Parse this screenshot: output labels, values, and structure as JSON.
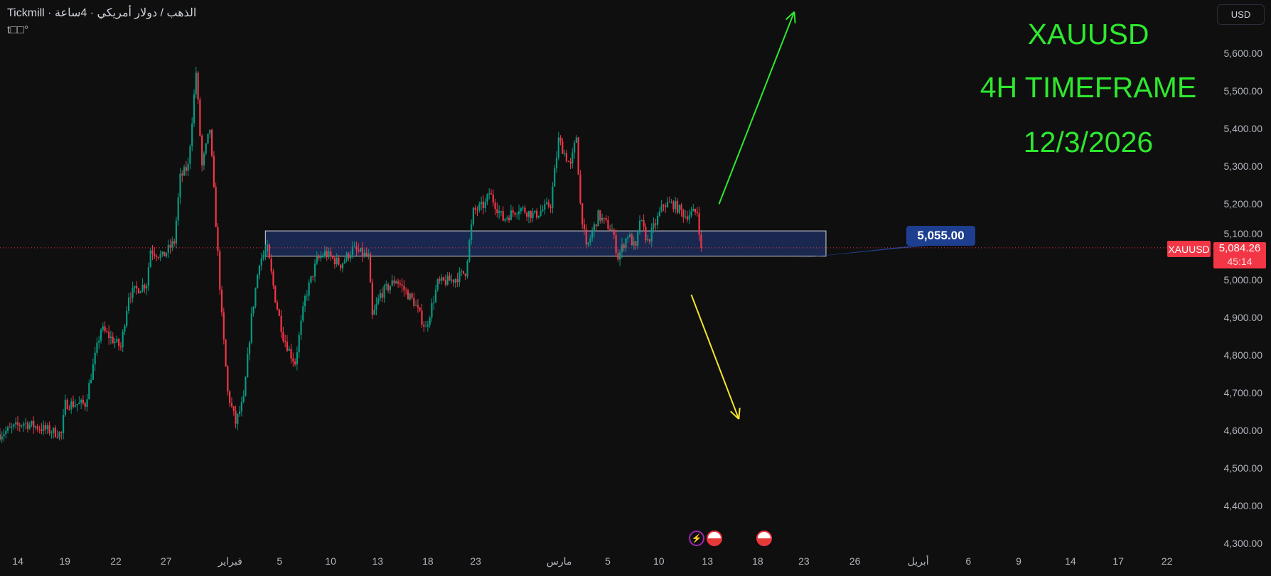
{
  "header": {
    "title": "Tickmill · الذهب / دولار أمريكي · 4ساعة",
    "subtitle": "t□□°"
  },
  "annotations": {
    "symbol": "XAUUSD",
    "timeframe": "4H TIMEFRAME",
    "date": "12/3/2026",
    "color": "#2ee82e"
  },
  "toolbar": {
    "currency_label": "USD"
  },
  "current_price": {
    "symbol": "XAUUSD",
    "price": "5,084.26",
    "countdown": "45:14",
    "color": "#f23645"
  },
  "zone": {
    "label": "5,055.00",
    "top": 5129,
    "bottom": 5062,
    "start": "2026-02-03 20:00",
    "end": "2026-03-23 00:00"
  },
  "arrows": [
    {
      "color": "#2ee82e",
      "direction": "up",
      "from": [
        "2026-03-14 00:00",
        5200
      ],
      "to": [
        "2026-03-20 08:00",
        5710
      ]
    },
    {
      "color": "#f5e52a",
      "direction": "down",
      "from": [
        "2026-03-11 16:00",
        4960
      ],
      "to": [
        "2026-03-15 16:00",
        4630
      ]
    }
  ],
  "events": [
    {
      "icon": "lightning-icon",
      "color": "#9c27b0"
    },
    {
      "icon": "us-flag-icon",
      "color": "#f23645"
    },
    {
      "icon": "us-flag-icon",
      "color": "#f23645"
    }
  ],
  "chart_data": {
    "type": "candlestick",
    "symbol": "XAUUSD",
    "timeframe": "4H",
    "up_color": "#089981",
    "down_color": "#f23645",
    "ylim": [
      4270,
      5680
    ],
    "y_ticks": [
      "5,600.00",
      "5,500.00",
      "5,400.00",
      "5,300.00",
      "5,200.00",
      "5,100.00",
      "5,000.00",
      "4,900.00",
      "4,800.00",
      "4,700.00",
      "4,600.00",
      "4,500.00",
      "4,400.00",
      "4,300.00"
    ],
    "x_ticks": [
      "14",
      "19",
      "22",
      "27",
      "فبراير",
      "5",
      "10",
      "13",
      "18",
      "23",
      "مارس",
      "5",
      "10",
      "13",
      "18",
      "23",
      "26",
      "أبريل",
      "6",
      "9",
      "14",
      "17",
      "22"
    ],
    "close_path": [
      [
        "2026-01-12 12:00",
        4590
      ],
      [
        "2026-01-14 12:00",
        4620
      ],
      [
        "2026-01-17 16:00",
        4590
      ],
      [
        "2026-01-18 00:00",
        4670
      ],
      [
        "2026-01-19 16:00",
        4670
      ],
      [
        "2026-01-21 00:00",
        4870
      ],
      [
        "2026-01-22 16:00",
        4820
      ],
      [
        "2026-01-23 08:00",
        4960
      ],
      [
        "2026-01-24 20:00",
        4990
      ],
      [
        "2026-01-25 04:00",
        5080
      ],
      [
        "2026-01-26 04:00",
        5060
      ],
      [
        "2026-01-27 04:00",
        5100
      ],
      [
        "2026-01-27 16:00",
        5270
      ],
      [
        "2026-01-28 08:00",
        5300
      ],
      [
        "2026-01-29 00:00",
        5550
      ],
      [
        "2026-01-29 12:00",
        5300
      ],
      [
        "2026-01-30 04:00",
        5400
      ],
      [
        "2026-01-30 16:00",
        5150
      ],
      [
        "2026-01-31 04:00",
        4900
      ],
      [
        "2026-01-31 16:00",
        4700
      ],
      [
        "2026-02-01 08:00",
        4620
      ],
      [
        "2026-02-02 00:00",
        4680
      ],
      [
        "2026-02-02 16:00",
        4900
      ],
      [
        "2026-02-03 08:00",
        5050
      ],
      [
        "2026-02-04 00:00",
        5080
      ],
      [
        "2026-02-04 16:00",
        4950
      ],
      [
        "2026-02-05 08:00",
        4850
      ],
      [
        "2026-02-06 00:00",
        4800
      ],
      [
        "2026-02-06 08:00",
        4780
      ],
      [
        "2026-02-07 04:00",
        4950
      ],
      [
        "2026-02-08 04:00",
        5050
      ],
      [
        "2026-02-08 20:00",
        5070
      ],
      [
        "2026-02-10 04:00",
        5040
      ],
      [
        "2026-02-11 04:00",
        5080
      ],
      [
        "2026-02-12 12:00",
        5060
      ],
      [
        "2026-02-12 20:00",
        4900
      ],
      [
        "2026-02-13 12:00",
        4960
      ],
      [
        "2026-02-14 20:00",
        5000
      ],
      [
        "2026-02-16 08:00",
        4940
      ],
      [
        "2026-02-17 08:00",
        4870
      ],
      [
        "2026-02-18 08:00",
        4990
      ],
      [
        "2026-02-19 16:00",
        5000
      ],
      [
        "2026-02-20 16:00",
        5020
      ],
      [
        "2026-02-21 08:00",
        5180
      ],
      [
        "2026-02-22 08:00",
        5200
      ],
      [
        "2026-02-22 16:00",
        5230
      ],
      [
        "2026-02-23 20:00",
        5160
      ],
      [
        "2026-02-25 04:00",
        5190
      ],
      [
        "2026-02-26 12:00",
        5170
      ],
      [
        "2026-02-27 20:00",
        5200
      ],
      [
        "2026-02-28 12:00",
        5370
      ],
      [
        "2026-03-01 12:00",
        5300
      ],
      [
        "2026-03-02 00:00",
        5380
      ],
      [
        "2026-03-02 08:00",
        5200
      ],
      [
        "2026-03-02 20:00",
        5080
      ],
      [
        "2026-03-03 20:00",
        5170
      ],
      [
        "2026-03-05 00:00",
        5130
      ],
      [
        "2026-03-05 12:00",
        5060
      ],
      [
        "2026-03-06 08:00",
        5120
      ],
      [
        "2026-03-07 00:00",
        5080
      ],
      [
        "2026-03-07 08:00",
        5160
      ],
      [
        "2026-03-08 00:00",
        5100
      ],
      [
        "2026-03-08 16:00",
        5150
      ],
      [
        "2026-03-09 08:00",
        5200
      ],
      [
        "2026-03-10 04:00",
        5200
      ],
      [
        "2026-03-11 04:00",
        5170
      ],
      [
        "2026-03-12 04:00",
        5180
      ],
      [
        "2026-03-12 12:00",
        5084.26
      ]
    ]
  }
}
